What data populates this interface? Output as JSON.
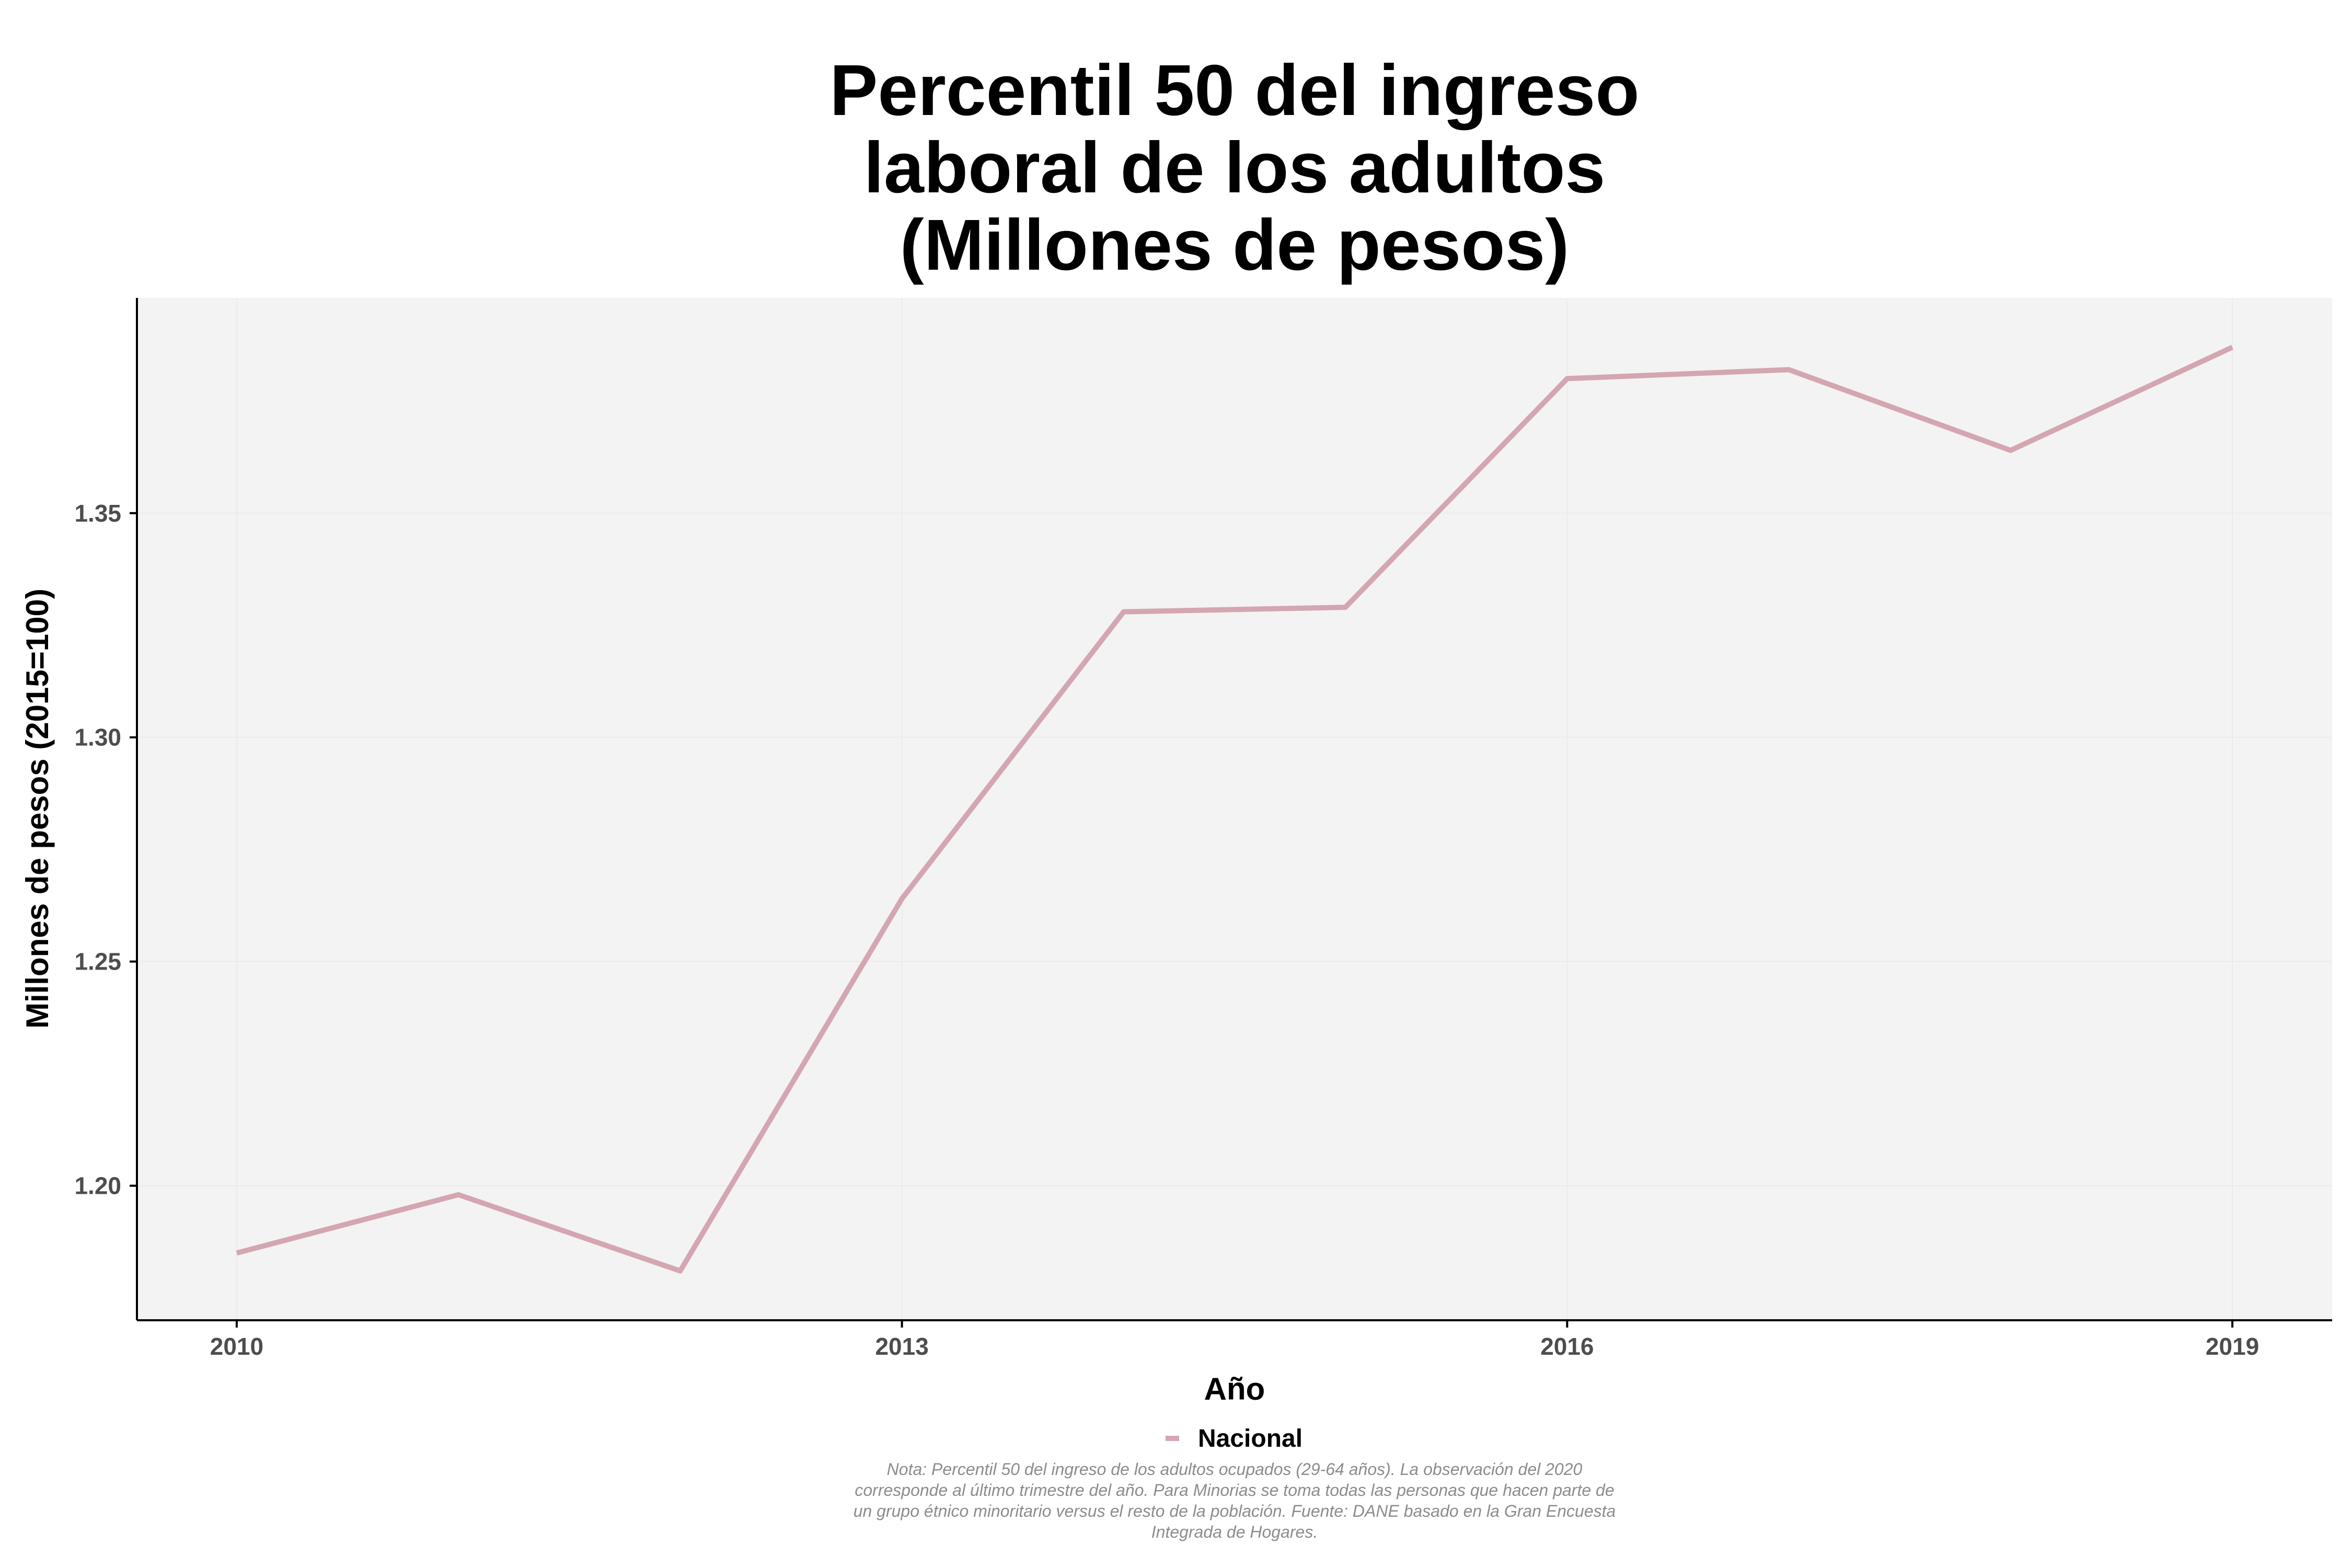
{
  "chart_data": {
    "type": "line",
    "title_lines": [
      "Percentil 50 del ingreso",
      "laboral de los adultos",
      "(Millones de pesos)"
    ],
    "xlabel": "Año",
    "ylabel": "Millones de pesos (2015=100)",
    "x": [
      2010,
      2011,
      2012,
      2013,
      2014,
      2015,
      2016,
      2017,
      2018,
      2019
    ],
    "x_ticks": [
      2010,
      2013,
      2016,
      2019
    ],
    "y_ticks": [
      1.2,
      1.25,
      1.3,
      1.35
    ],
    "y_tick_labels": [
      "1.20",
      "1.25",
      "1.30",
      "1.35"
    ],
    "xlim": [
      2009.55,
      2019.45
    ],
    "ylim": [
      1.17,
      1.398
    ],
    "series": [
      {
        "name": "Nacional",
        "color": "#d4a6b1",
        "values": [
          1.185,
          1.198,
          1.181,
          1.264,
          1.328,
          1.329,
          1.38,
          1.382,
          1.364,
          1.387
        ]
      }
    ],
    "grid": true,
    "legend_position": "bottom",
    "caption_lines": [
      "Nota: Percentil 50 del ingreso de los adultos ocupados (29-64 años). La observación del 2020",
      "corresponde al último trimestre del año. Para Minorias se toma todas las personas que hacen parte de",
      "un grupo étnico minoritario versus el resto de la población. Fuente: DANE basado en la Gran Encuesta",
      "Integrada de Hogares."
    ]
  },
  "colors": {
    "panel_background": "#f3f3f3",
    "grid": "#ebebeb",
    "axis_line": "#000000"
  }
}
